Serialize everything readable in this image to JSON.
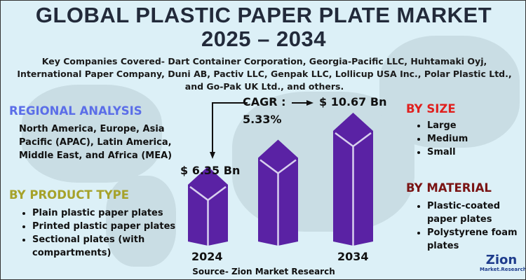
{
  "title": "GLOBAL PLASTIC PAPER PLATE MARKET",
  "subtitle": "2025 – 2034",
  "companies": "Key Companies Covered- Dart Container Corporation, Georgia-Pacific LLC, Huhtamaki Oyj, International Paper Company, Duni AB, Pactiv LLC, Genpak LLC, Lollicup USA Inc., Polar Plastic Ltd., and Go-Pak UK Ltd., and others.",
  "regional": {
    "heading": "REGIONAL ANALYSIS",
    "text": "North America, Europe, Asia Pacific (APAC), Latin America, Middle East, and Africa (MEA)",
    "color": "#5b6ee8"
  },
  "product": {
    "heading": "BY PRODUCT TYPE",
    "items": [
      "Plain plastic paper plates",
      "Printed plastic paper plates",
      "Sectional plates (with compartments)"
    ],
    "color": "#a6a22a"
  },
  "size": {
    "heading": "BY SIZE",
    "items": [
      "Large",
      "Medium",
      "Small"
    ],
    "color": "#e0201e"
  },
  "material": {
    "heading": "BY MATERIAL",
    "items": [
      "Plastic-coated paper plates",
      "Polystyrene foam plates"
    ],
    "color": "#7a1414"
  },
  "cagr": {
    "label": "CAGR :",
    "value": "5.33%"
  },
  "source": "Source- Zion Market Research",
  "logo": {
    "text1": "Zion",
    "text2": "Market.Research"
  },
  "chart_data": {
    "type": "bar",
    "categories": [
      "2024",
      "",
      "2034"
    ],
    "values": [
      6.35,
      null,
      10.67
    ],
    "value_labels": [
      "$ 6.35 Bn",
      "",
      "$ 10.67 Bn"
    ],
    "bar_color": "#5a22a4"
  }
}
